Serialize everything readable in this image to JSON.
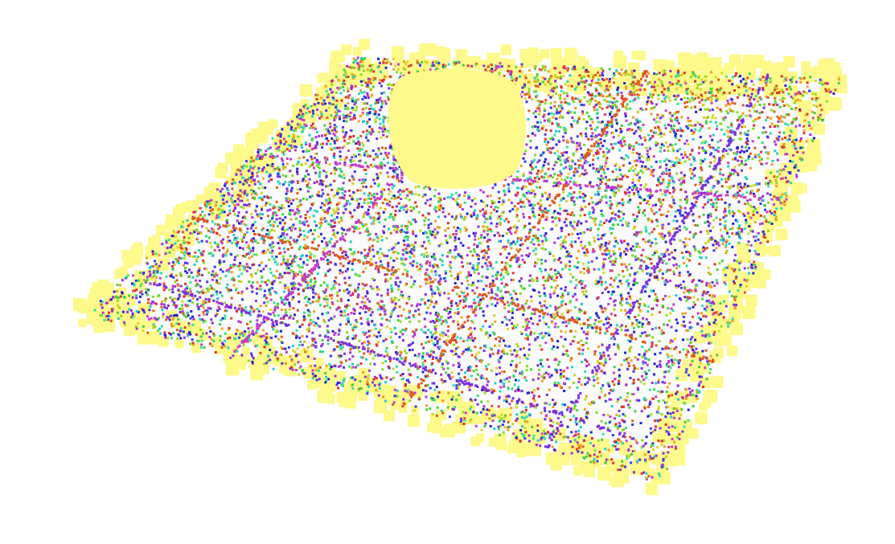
{
  "point_cloud": {
    "background_color": "#ffffff",
    "surface_color": "#fafbfa",
    "boundary_color": "#fdf98a",
    "hole_color": "#fdf98a",
    "point_palette": [
      "#2222cc",
      "#3a3af0",
      "#7a2fe0",
      "#a232d6",
      "#c83cc8",
      "#22cccc",
      "#33e0a0",
      "#44d044",
      "#88dd22",
      "#d6d622",
      "#f0a020",
      "#e05a20",
      "#e03030"
    ],
    "seam_colors": [
      "#c83cc8",
      "#e05a20",
      "#7a2fe0"
    ]
  }
}
